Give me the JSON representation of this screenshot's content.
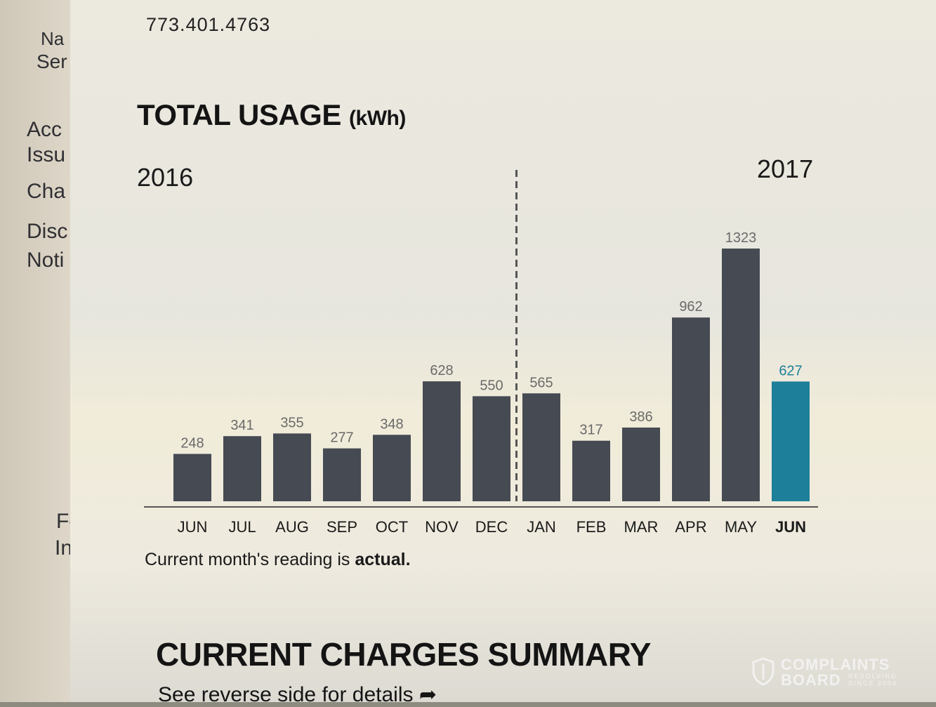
{
  "background_sheet": {
    "labels": [
      "Na",
      "Ser",
      "Acc",
      "Issu",
      "Cha",
      "Disc",
      "Noti",
      "Fo",
      "In"
    ]
  },
  "contact": {
    "phone": "773.401.4763"
  },
  "usage": {
    "title": "TOTAL USAGE",
    "unit": "(kWh)"
  },
  "chart_data": {
    "type": "bar",
    "title": "TOTAL USAGE (kWh)",
    "period_labels": [
      "2016",
      "2017"
    ],
    "categories": [
      "JUN",
      "JUL",
      "AUG",
      "SEP",
      "OCT",
      "NOV",
      "DEC",
      "JAN",
      "FEB",
      "MAR",
      "APR",
      "MAY",
      "JUN"
    ],
    "values": [
      248,
      341,
      355,
      277,
      348,
      628,
      550,
      565,
      317,
      386,
      962,
      1323,
      627
    ],
    "year_divider_after_index": 6,
    "highlight_index": 12,
    "colors": {
      "bar": "#464a52",
      "highlight": "#1d7f99",
      "label": "#6a6a6a",
      "highlight_label": "#1d7f99"
    },
    "ylim": [
      0,
      1323
    ],
    "grid": false,
    "legend": "none"
  },
  "note": {
    "prefix": "Current month's reading is ",
    "emphasis": "actual."
  },
  "summary": {
    "title": "CURRENT CHARGES SUMMARY",
    "subtitle": "See reverse side for details"
  },
  "watermark": {
    "line1": "COMPLAINTS",
    "line2": "BOARD",
    "tag1": "RESOLVING",
    "tag2": "SINCE 2004"
  }
}
